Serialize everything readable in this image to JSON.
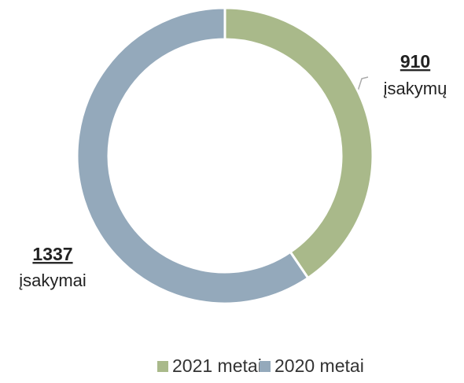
{
  "chart_data": {
    "type": "donut",
    "series": [
      {
        "name": "2021 metai",
        "color": "#a9b98a",
        "values": [
          910
        ],
        "unit_label": "įsakymų"
      },
      {
        "name": "2020 metai",
        "color": "#94a9bb",
        "values": [
          1337
        ],
        "unit_label": "įsakymai"
      }
    ],
    "legend": "bottom"
  }
}
